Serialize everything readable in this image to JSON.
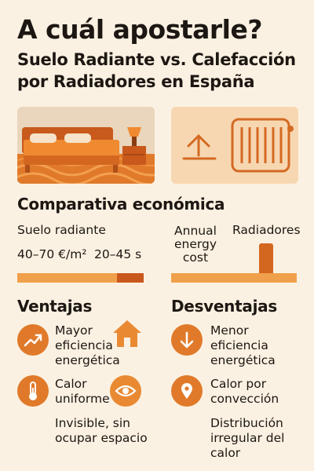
{
  "header": {
    "title": "A cuál apostarle?",
    "subtitle_line1": "Suelo Radiante vs. Calefacción",
    "subtitle_line2": "por Radiadores en España"
  },
  "comparison": {
    "heading": "Comparativa económica",
    "left_label": "Suelo radiante",
    "left_cost": "40–70 €/m²",
    "left_time": "20–45 s",
    "annual_line1": "Annual",
    "annual_line2": "energy",
    "annual_line3": "cost",
    "right_label": "Radiadores"
  },
  "ventajas": {
    "heading": "Ventajas",
    "item1_line1": "Mayor",
    "item1_line2": "eficiencia",
    "item1_line3": "energética",
    "item2_line1": "Calor",
    "item2_line2": "uniforme",
    "item3_line1": "Invisible, sin",
    "item3_line2": "ocupar espacio"
  },
  "desventajas": {
    "heading": "Desventajas",
    "item1_line1": "Menor",
    "item1_line2": "eficiencia",
    "item1_line3": "energética",
    "item2_line1": "Calor por",
    "item2_line2": "convección",
    "item3_line1": "Distribución",
    "item3_line2": "irregular del",
    "item3_line3": "calor"
  },
  "colors": {
    "accent": "#e87a25",
    "accent_dark": "#c8581b",
    "bar_light": "#f0a04b",
    "panel_bg": "#f7d7b2",
    "text": "#1c1712"
  }
}
